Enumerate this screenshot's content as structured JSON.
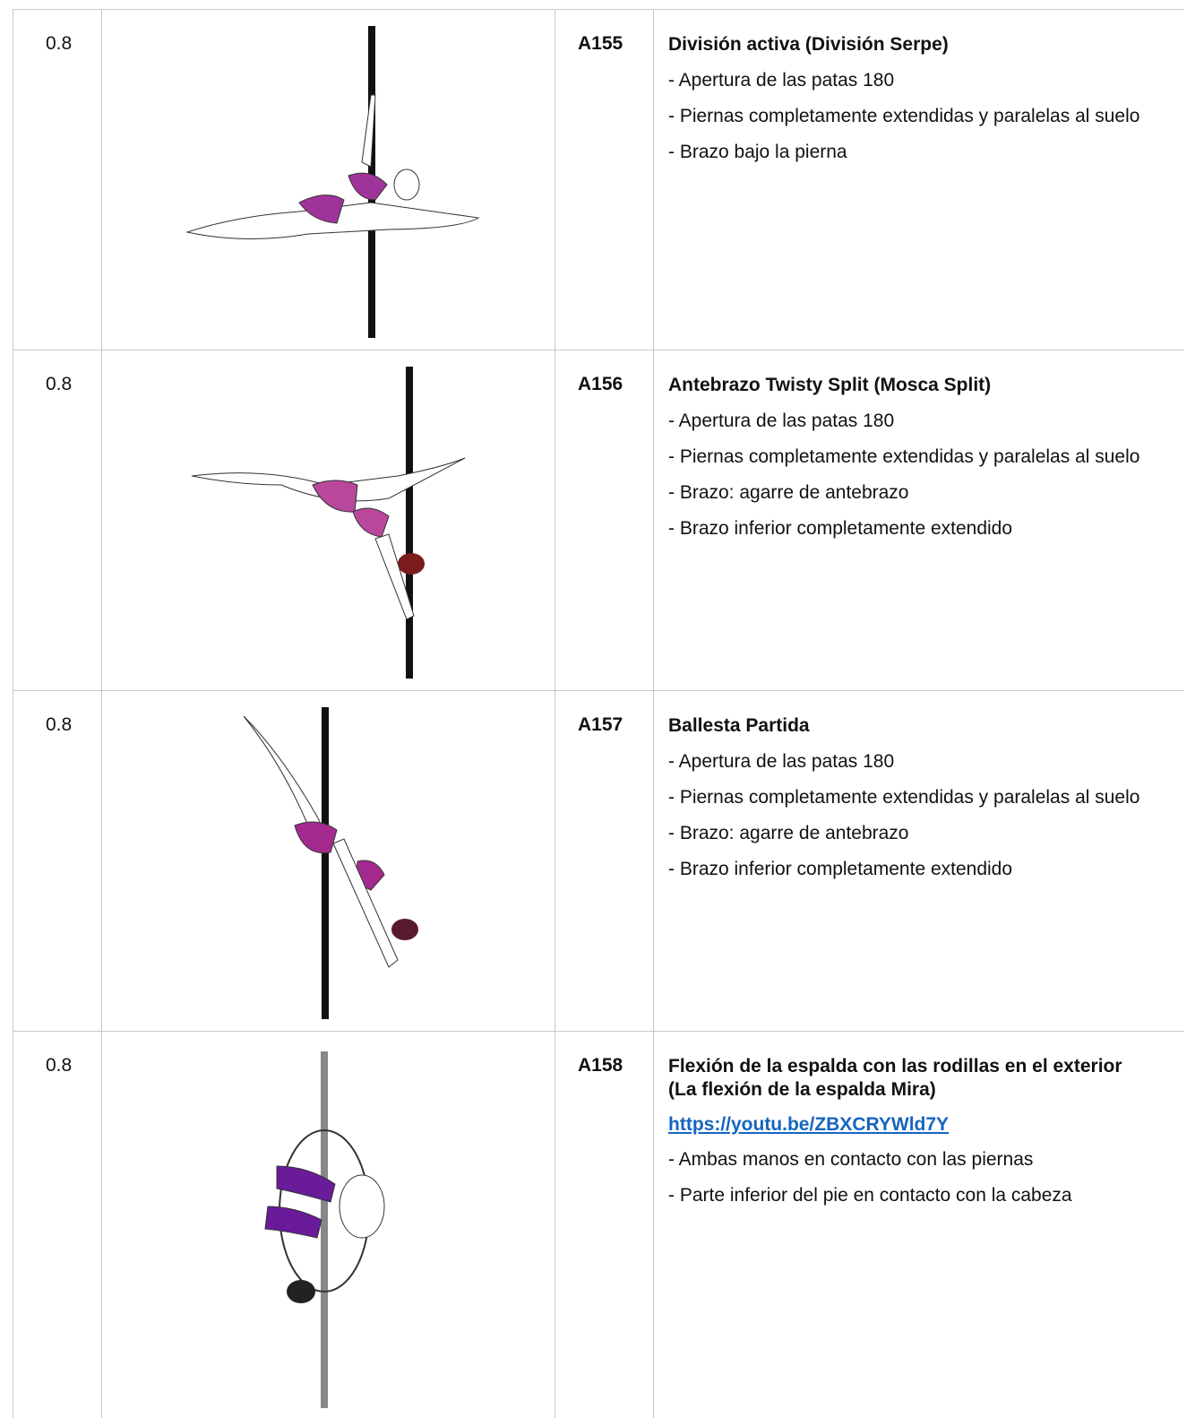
{
  "table": {
    "rows": [
      {
        "score": "0.8",
        "code": "A155",
        "title": "División activa (División Serpe)",
        "items": [
          "- Apertura de las patas 180",
          "- Piernas completamente extendidas y paralelas al suelo",
          "- Brazo bajo la pierna"
        ]
      },
      {
        "score": "0.8",
        "code": "A156",
        "title": "Antebrazo Twisty Split (Mosca Split)",
        "items": [
          "- Apertura de las patas 180",
          "- Piernas completamente extendidas y paralelas al suelo",
          "- Brazo: agarre de antebrazo",
          "- Brazo inferior completamente extendido"
        ]
      },
      {
        "score": "0.8",
        "code": "A157",
        "title": "Ballesta Partida",
        "items": [
          "- Apertura de las patas 180",
          "- Piernas completamente extendidas y paralelas al suelo",
          "- Brazo: agarre de antebrazo",
          "- Brazo inferior completamente extendido"
        ]
      },
      {
        "score": "0.8",
        "code": "A158",
        "title": "Flexión de la espalda con las rodillas en el exterior (La flexión de la espalda Mira)",
        "link": "https://youtu.be/ZBXCRYWld7Y",
        "items": [
          "- Ambas manos en contacto con las piernas",
          "- Parte inferior del pie en contacto con la cabeza"
        ]
      }
    ]
  }
}
